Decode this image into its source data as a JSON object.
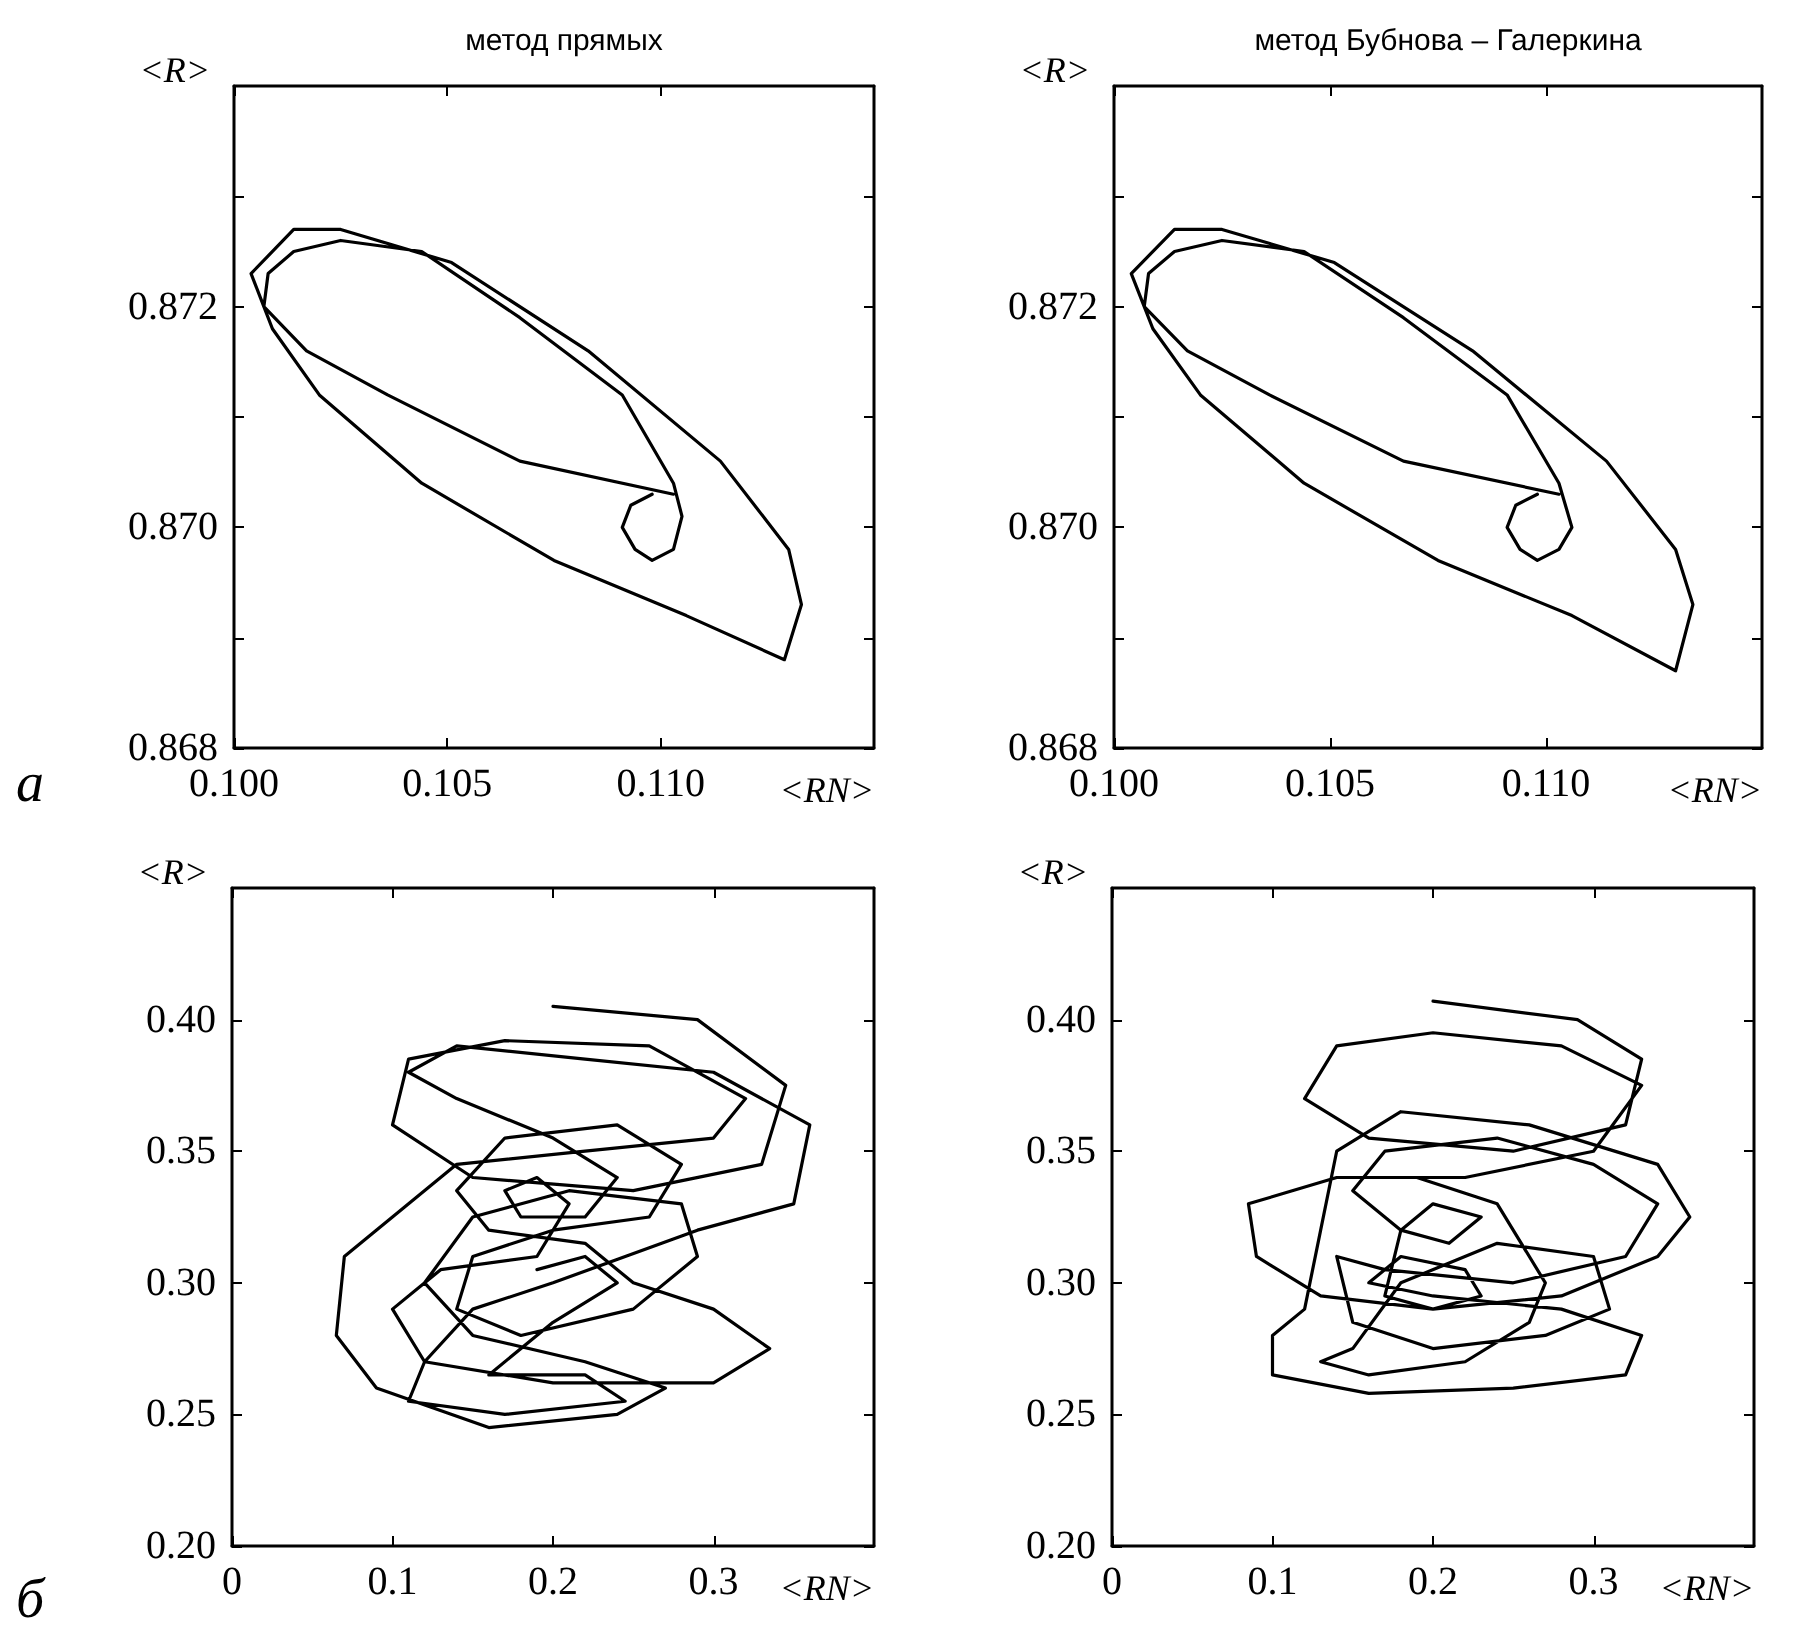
{
  "chart_data": [
    {
      "type": "line",
      "title": "метод прямых",
      "xlabel": "<RN>",
      "ylabel": "<R>",
      "annotations": [
        "а"
      ],
      "marker": "none",
      "line_style": "solid",
      "xlim": [
        0.1,
        0.115
      ],
      "xticks": [
        {
          "value": 0.1,
          "label": "0.100"
        },
        {
          "value": 0.105,
          "label": "0.105"
        },
        {
          "value": 0.11,
          "label": "0.110"
        }
      ],
      "ylim": [
        0.868,
        0.874
      ],
      "yticks": [
        {
          "value": 0.868,
          "label": "0.868"
        },
        {
          "value": 0.869,
          "label": null
        },
        {
          "value": 0.87,
          "label": "0.870"
        },
        {
          "value": 0.871,
          "label": null
        },
        {
          "value": 0.872,
          "label": "0.872"
        },
        {
          "value": 0.873,
          "label": null
        }
      ],
      "series": [
        {
          "color": "#000000",
          "x": [
            0.1103,
            0.1067,
            0.1036,
            0.1017,
            0.1007,
            0.1004,
            0.1014,
            0.1025,
            0.1051,
            0.1083,
            0.1114,
            0.113,
            0.1133,
            0.1129,
            0.1106,
            0.1075,
            0.1044,
            0.102,
            0.1009,
            0.1007,
            0.1008,
            0.1014,
            0.1025,
            0.1044,
            0.1067,
            0.1091,
            0.1103,
            0.1105,
            0.1103,
            0.1098,
            0.1094,
            0.1091,
            0.1093,
            0.1098
          ],
          "values": [
            0.8703,
            0.8706,
            0.8712,
            0.8716,
            0.872,
            0.8723,
            0.8727,
            0.8727,
            0.8724,
            0.8716,
            0.8706,
            0.8698,
            0.8693,
            0.8688,
            0.8692,
            0.8697,
            0.8704,
            0.8712,
            0.8718,
            0.872,
            0.8723,
            0.8725,
            0.8726,
            0.8725,
            0.8719,
            0.8712,
            0.8704,
            0.8701,
            0.8698,
            0.8697,
            0.8698,
            0.87,
            0.8702,
            0.8703
          ]
        }
      ]
    },
    {
      "type": "line",
      "title": "метод Бубнова – Галеркина",
      "xlabel": "<RN>",
      "ylabel": "<R>",
      "marker": "none",
      "line_style": "solid",
      "xlim": [
        0.1,
        0.115
      ],
      "xticks": [
        {
          "value": 0.1,
          "label": "0.100"
        },
        {
          "value": 0.105,
          "label": "0.105"
        },
        {
          "value": 0.11,
          "label": "0.110"
        }
      ],
      "ylim": [
        0.868,
        0.874
      ],
      "yticks": [
        {
          "value": 0.868,
          "label": "0.868"
        },
        {
          "value": 0.869,
          "label": null
        },
        {
          "value": 0.87,
          "label": "0.870"
        },
        {
          "value": 0.871,
          "label": null
        },
        {
          "value": 0.872,
          "label": "0.872"
        },
        {
          "value": 0.873,
          "label": null
        }
      ],
      "series": [
        {
          "color": "#000000",
          "x": [
            0.1103,
            0.1067,
            0.1036,
            0.1017,
            0.1007,
            0.1004,
            0.1014,
            0.1025,
            0.1051,
            0.1083,
            0.1114,
            0.113,
            0.1134,
            0.113,
            0.1106,
            0.1075,
            0.1044,
            0.102,
            0.1009,
            0.1007,
            0.1008,
            0.1014,
            0.1025,
            0.1044,
            0.1067,
            0.1091,
            0.1103,
            0.1106,
            0.1103,
            0.1098,
            0.1094,
            0.1091,
            0.1093,
            0.1098
          ],
          "values": [
            0.8703,
            0.8706,
            0.8712,
            0.8716,
            0.872,
            0.8723,
            0.8727,
            0.8727,
            0.8724,
            0.8716,
            0.8706,
            0.8698,
            0.8693,
            0.8687,
            0.8692,
            0.8697,
            0.8704,
            0.8712,
            0.8718,
            0.872,
            0.8723,
            0.8725,
            0.8726,
            0.8725,
            0.8719,
            0.8712,
            0.8704,
            0.87,
            0.8698,
            0.8697,
            0.8698,
            0.87,
            0.8702,
            0.8703
          ]
        }
      ]
    },
    {
      "type": "line",
      "xlabel": "<RN>",
      "ylabel": "<R>",
      "annotations": [
        "б"
      ],
      "marker": "none",
      "line_style": "solid",
      "xlim": [
        0,
        0.4
      ],
      "xticks": [
        0,
        0.1,
        0.2,
        0.3
      ],
      "ylim": [
        0.2,
        0.45
      ],
      "yticks": [
        {
          "value": 0.2,
          "label": "0.20"
        },
        {
          "value": 0.25,
          "label": "0.25"
        },
        {
          "value": 0.3,
          "label": "0.30"
        },
        {
          "value": 0.35,
          "label": "0.35"
        },
        {
          "value": 0.4,
          "label": "0.40"
        }
      ],
      "series": [
        {
          "color": "#000000",
          "x": [
            0.2,
            0.29,
            0.345,
            0.33,
            0.25,
            0.15,
            0.1,
            0.11,
            0.17,
            0.26,
            0.32,
            0.3,
            0.22,
            0.14,
            0.07,
            0.065,
            0.09,
            0.16,
            0.24,
            0.27,
            0.22,
            0.15,
            0.12,
            0.15,
            0.21,
            0.28,
            0.29,
            0.25,
            0.18,
            0.14,
            0.15,
            0.2,
            0.26,
            0.28,
            0.24,
            0.17,
            0.14,
            0.16,
            0.22,
            0.25,
            0.3,
            0.335,
            0.3,
            0.2,
            0.12,
            0.1,
            0.13,
            0.19,
            0.21,
            0.19,
            0.17,
            0.18,
            0.22,
            0.24,
            0.2,
            0.14,
            0.11,
            0.14,
            0.22,
            0.3,
            0.36,
            0.35,
            0.29,
            0.2,
            0.15,
            0.12,
            0.11,
            0.17,
            0.245,
            0.22,
            0.16,
            0.2,
            0.24,
            0.22,
            0.19
          ],
          "values": [
            0.405,
            0.4,
            0.375,
            0.345,
            0.335,
            0.34,
            0.36,
            0.385,
            0.392,
            0.39,
            0.37,
            0.355,
            0.35,
            0.345,
            0.31,
            0.28,
            0.26,
            0.245,
            0.25,
            0.26,
            0.27,
            0.28,
            0.3,
            0.325,
            0.335,
            0.33,
            0.31,
            0.29,
            0.28,
            0.29,
            0.31,
            0.32,
            0.325,
            0.345,
            0.36,
            0.355,
            0.335,
            0.32,
            0.315,
            0.3,
            0.29,
            0.275,
            0.262,
            0.262,
            0.27,
            0.29,
            0.305,
            0.31,
            0.33,
            0.34,
            0.335,
            0.325,
            0.325,
            0.34,
            0.355,
            0.37,
            0.38,
            0.39,
            0.385,
            0.38,
            0.36,
            0.33,
            0.32,
            0.3,
            0.29,
            0.27,
            0.255,
            0.25,
            0.255,
            0.265,
            0.265,
            0.285,
            0.3,
            0.31,
            0.305
          ]
        }
      ]
    },
    {
      "type": "line",
      "xlabel": "<RN>",
      "ylabel": "<R>",
      "marker": "none",
      "line_style": "solid",
      "xlim": [
        0,
        0.4
      ],
      "xticks": [
        0,
        0.1,
        0.2,
        0.3
      ],
      "ylim": [
        0.2,
        0.45
      ],
      "yticks": [
        {
          "value": 0.2,
          "label": "0.20"
        },
        {
          "value": 0.25,
          "label": "0.25"
        },
        {
          "value": 0.3,
          "label": "0.30"
        },
        {
          "value": 0.35,
          "label": "0.35"
        },
        {
          "value": 0.4,
          "label": "0.40"
        }
      ],
      "series": [
        {
          "color": "#000000",
          "x": [
            0.2,
            0.29,
            0.33,
            0.32,
            0.25,
            0.16,
            0.12,
            0.14,
            0.2,
            0.28,
            0.33,
            0.3,
            0.22,
            0.14,
            0.085,
            0.09,
            0.13,
            0.2,
            0.28,
            0.34,
            0.36,
            0.34,
            0.26,
            0.18,
            0.14,
            0.13,
            0.12,
            0.1,
            0.1,
            0.16,
            0.25,
            0.32,
            0.33,
            0.28,
            0.2,
            0.16,
            0.18,
            0.22,
            0.23,
            0.2,
            0.17,
            0.18,
            0.2,
            0.23,
            0.21,
            0.18,
            0.15,
            0.17,
            0.24,
            0.3,
            0.34,
            0.32,
            0.25,
            0.17,
            0.14,
            0.15,
            0.2,
            0.27,
            0.31,
            0.3,
            0.24,
            0.18,
            0.15,
            0.13,
            0.16,
            0.22,
            0.26,
            0.27,
            0.24,
            0.19
          ],
          "values": [
            0.407,
            0.4,
            0.385,
            0.36,
            0.35,
            0.355,
            0.37,
            0.39,
            0.395,
            0.39,
            0.375,
            0.35,
            0.34,
            0.34,
            0.33,
            0.31,
            0.295,
            0.29,
            0.295,
            0.31,
            0.325,
            0.345,
            0.36,
            0.365,
            0.35,
            0.32,
            0.29,
            0.28,
            0.265,
            0.258,
            0.26,
            0.265,
            0.28,
            0.29,
            0.295,
            0.3,
            0.31,
            0.305,
            0.295,
            0.29,
            0.295,
            0.32,
            0.33,
            0.325,
            0.315,
            0.32,
            0.335,
            0.35,
            0.355,
            0.345,
            0.33,
            0.31,
            0.3,
            0.305,
            0.31,
            0.285,
            0.275,
            0.28,
            0.29,
            0.31,
            0.315,
            0.3,
            0.275,
            0.27,
            0.265,
            0.27,
            0.285,
            0.3,
            0.33,
            0.34
          ]
        }
      ]
    }
  ]
}
